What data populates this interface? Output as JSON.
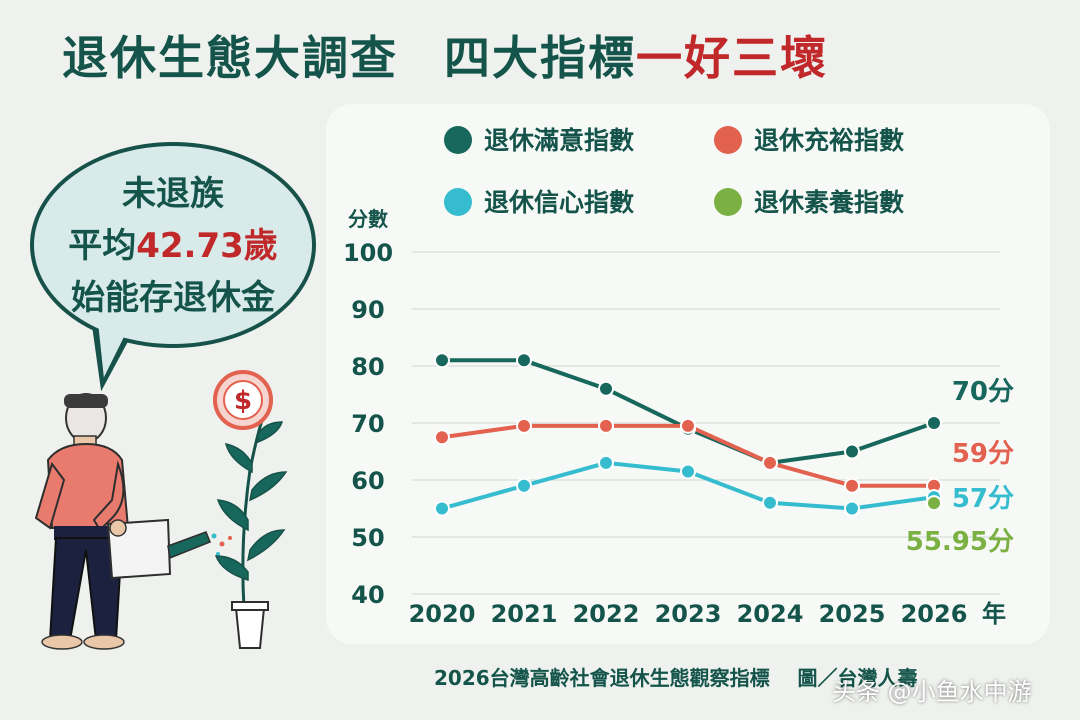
{
  "header": {
    "title_main": "退休生態大調查",
    "title_sub": "四大指標",
    "title_highlight": "一好三壞"
  },
  "callout": {
    "line1": "未退族",
    "line2_prefix": "平均",
    "line2_highlight": "42.73歲",
    "line3": "始能存退休金"
  },
  "footer": {
    "source": "2026台灣高齡社會退休生態觀察指標",
    "credit": "圖／台灣人壽"
  },
  "watermark": "头条 @小鱼水中游",
  "colors": {
    "title": "#14544a",
    "highlight_red": "#c0282a",
    "satisfaction": "#17675c",
    "adequacy": "#e2624f",
    "confidence": "#36bccf",
    "literacy": "#7bb043"
  },
  "illustration": {
    "coin_icon": "dollar-coin-icon"
  },
  "chart_data": {
    "type": "line",
    "ylabel": "分數",
    "x_unit": "年",
    "categories": [
      "2020",
      "2021",
      "2022",
      "2023",
      "2024",
      "2025",
      "2026"
    ],
    "ylim": [
      40,
      100
    ],
    "yticks": [
      40,
      50,
      60,
      70,
      80,
      90,
      100
    ],
    "grid": true,
    "legend_position": "top",
    "series": [
      {
        "name": "退休滿意指數",
        "color": "#17675c",
        "values": [
          81,
          81,
          76,
          69,
          63,
          65,
          70
        ],
        "end_label": "70分"
      },
      {
        "name": "退休充裕指數",
        "color": "#e2624f",
        "values": [
          67.5,
          69.5,
          69.5,
          69.5,
          63,
          59,
          59
        ],
        "end_label": "59分"
      },
      {
        "name": "退休信心指數",
        "color": "#36bccf",
        "values": [
          55,
          59,
          63,
          61.5,
          56,
          55,
          57
        ],
        "end_label": "57分"
      },
      {
        "name": "退休素養指數",
        "color": "#7bb043",
        "values": [
          null,
          null,
          null,
          null,
          null,
          null,
          55.95
        ],
        "end_label": "55.95分"
      }
    ]
  }
}
